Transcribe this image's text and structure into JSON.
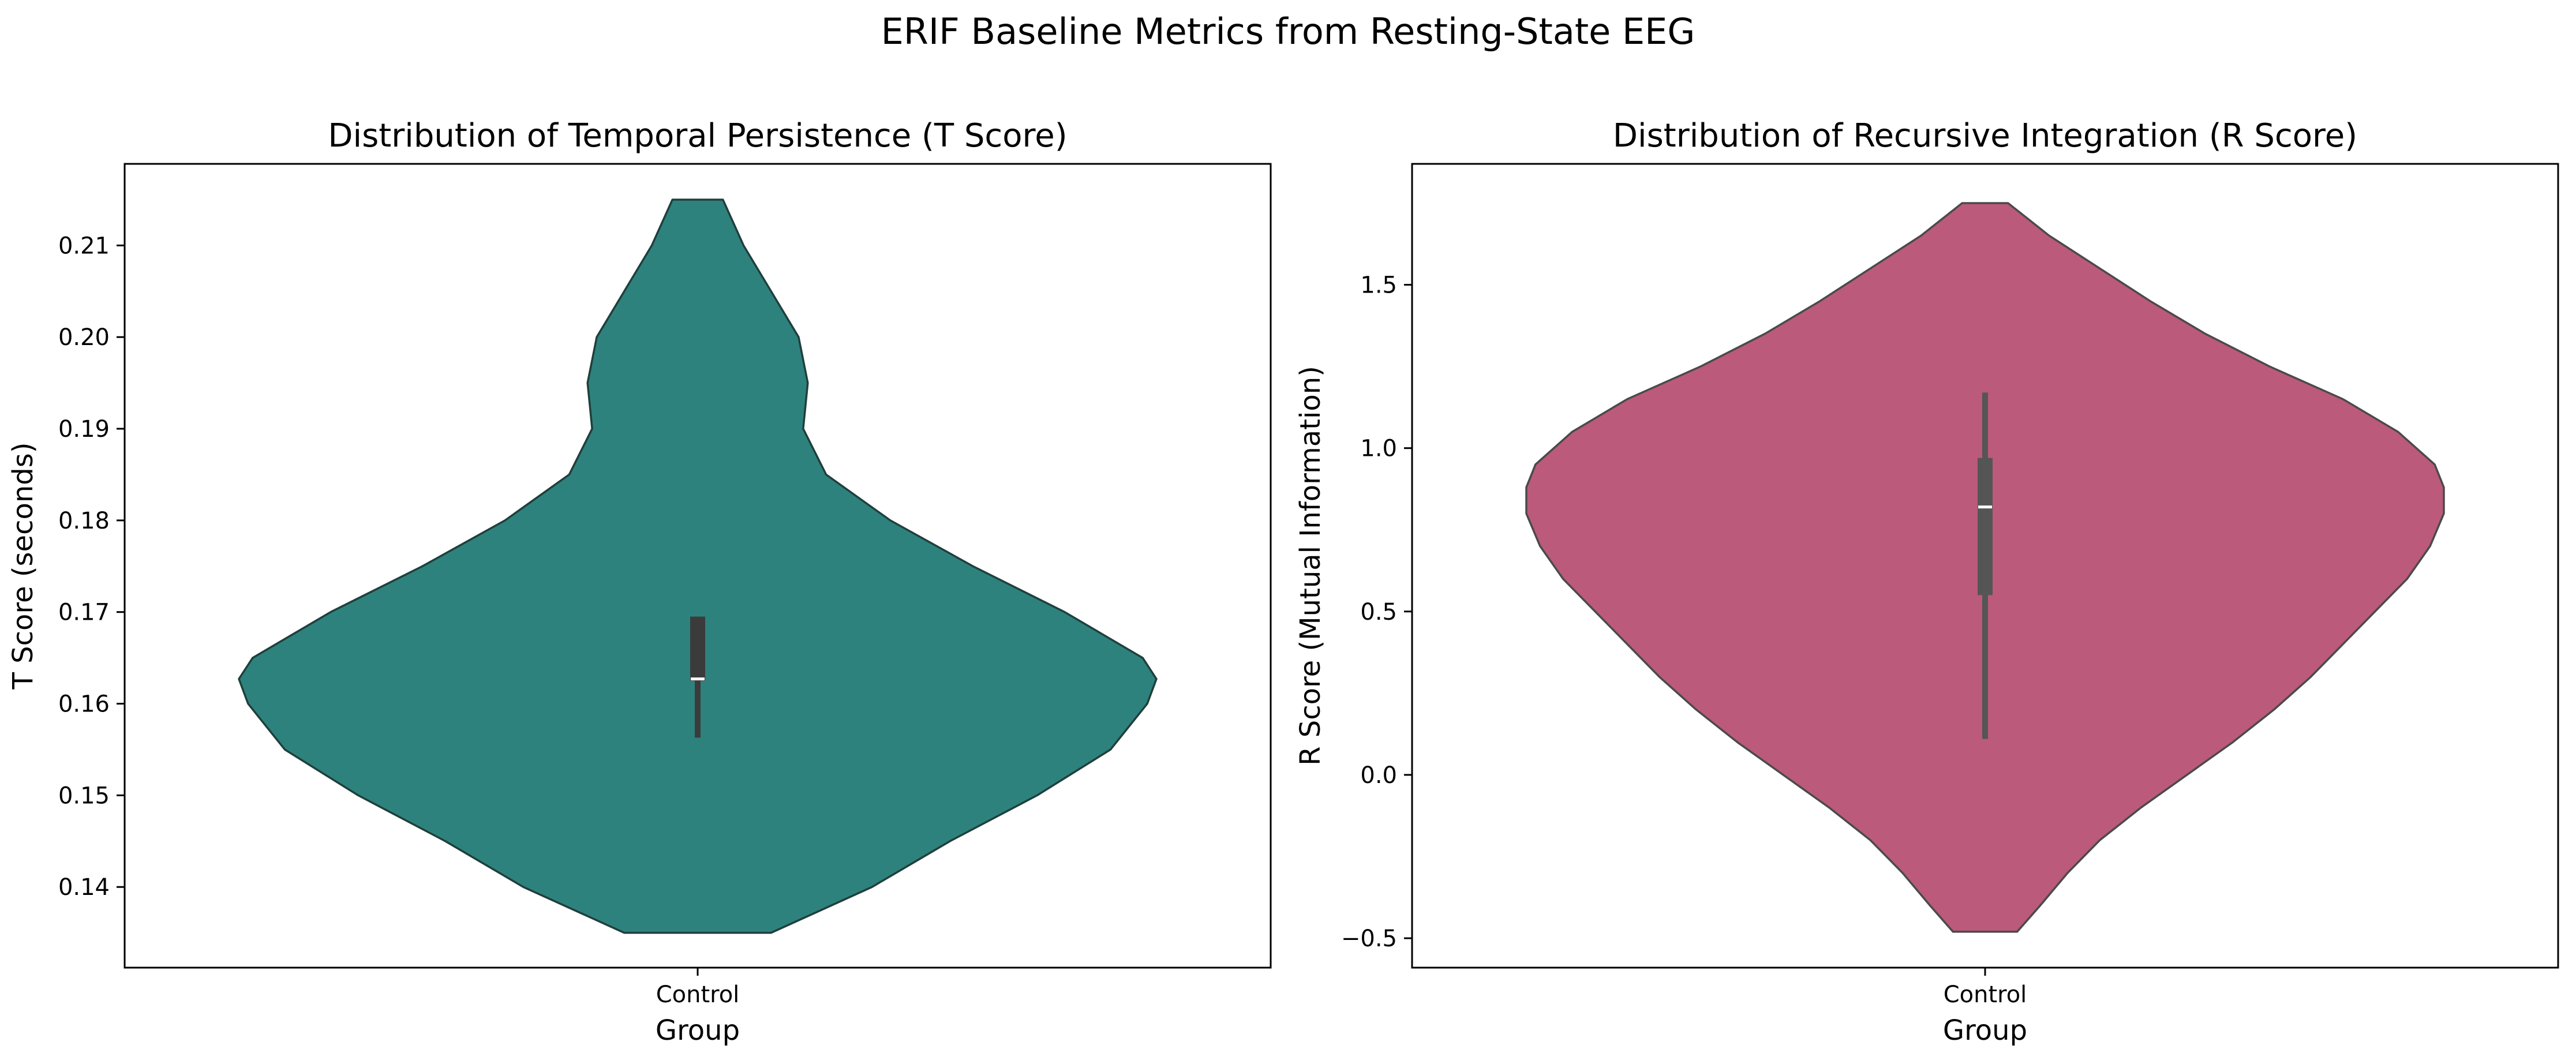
{
  "figure": {
    "suptitle": "ERIF Baseline Metrics from Resting-State EEG"
  },
  "chart_data": [
    {
      "type": "violin",
      "title": "Distribution of Temporal Persistence (T Score)",
      "xlabel": "Group",
      "ylabel": "T Score (seconds)",
      "categories": [
        "Control"
      ],
      "ylim": [
        0.1312,
        0.2189
      ],
      "yticks": [
        0.14,
        0.15,
        0.16,
        0.17,
        0.18,
        0.19,
        0.2,
        0.21
      ],
      "ytick_labels": [
        "0.14",
        "0.15",
        "0.16",
        "0.17",
        "0.18",
        "0.19",
        "0.20",
        "0.21"
      ],
      "grid": false,
      "color": "#2e827d",
      "density_profile": [
        {
          "value": 0.135,
          "rel_width": 0.16
        },
        {
          "value": 0.14,
          "rel_width": 0.38
        },
        {
          "value": 0.145,
          "rel_width": 0.55
        },
        {
          "value": 0.15,
          "rel_width": 0.74
        },
        {
          "value": 0.155,
          "rel_width": 0.9
        },
        {
          "value": 0.16,
          "rel_width": 0.98
        },
        {
          "value": 0.1627,
          "rel_width": 1.0
        },
        {
          "value": 0.165,
          "rel_width": 0.97
        },
        {
          "value": 0.17,
          "rel_width": 0.8
        },
        {
          "value": 0.175,
          "rel_width": 0.6
        },
        {
          "value": 0.18,
          "rel_width": 0.42
        },
        {
          "value": 0.185,
          "rel_width": 0.28
        },
        {
          "value": 0.19,
          "rel_width": 0.23
        },
        {
          "value": 0.195,
          "rel_width": 0.24
        },
        {
          "value": 0.2,
          "rel_width": 0.22
        },
        {
          "value": 0.205,
          "rel_width": 0.16
        },
        {
          "value": 0.21,
          "rel_width": 0.1
        },
        {
          "value": 0.215,
          "rel_width": 0.055
        }
      ],
      "box": {
        "whisker_low": 0.1563,
        "q1": 0.1625,
        "median": 0.1627,
        "q3": 0.1695,
        "whisker_high": 0.1695
      }
    },
    {
      "type": "violin",
      "title": "Distribution of Recursive Integration (R Score)",
      "xlabel": "Group",
      "ylabel": "R Score (Mutual Information)",
      "categories": [
        "Control"
      ],
      "ylim": [
        -0.59,
        1.87
      ],
      "yticks": [
        -0.5,
        0.0,
        0.5,
        1.0,
        1.5
      ],
      "ytick_labels": [
        "−0.5",
        "0.0",
        "0.5",
        "1.0",
        "1.5"
      ],
      "grid": false,
      "color": "#bc5a7b",
      "density_profile": [
        {
          "value": -0.48,
          "rel_width": 0.07
        },
        {
          "value": -0.4,
          "rel_width": 0.12
        },
        {
          "value": -0.3,
          "rel_width": 0.18
        },
        {
          "value": -0.2,
          "rel_width": 0.25
        },
        {
          "value": -0.1,
          "rel_width": 0.34
        },
        {
          "value": 0.0,
          "rel_width": 0.44
        },
        {
          "value": 0.1,
          "rel_width": 0.54
        },
        {
          "value": 0.2,
          "rel_width": 0.63
        },
        {
          "value": 0.3,
          "rel_width": 0.71
        },
        {
          "value": 0.4,
          "rel_width": 0.78
        },
        {
          "value": 0.5,
          "rel_width": 0.85
        },
        {
          "value": 0.6,
          "rel_width": 0.92
        },
        {
          "value": 0.7,
          "rel_width": 0.97
        },
        {
          "value": 0.8,
          "rel_width": 1.0
        },
        {
          "value": 0.88,
          "rel_width": 1.0
        },
        {
          "value": 0.95,
          "rel_width": 0.98
        },
        {
          "value": 1.05,
          "rel_width": 0.9
        },
        {
          "value": 1.15,
          "rel_width": 0.78
        },
        {
          "value": 1.25,
          "rel_width": 0.62
        },
        {
          "value": 1.35,
          "rel_width": 0.48
        },
        {
          "value": 1.45,
          "rel_width": 0.36
        },
        {
          "value": 1.55,
          "rel_width": 0.25
        },
        {
          "value": 1.65,
          "rel_width": 0.14
        },
        {
          "value": 1.75,
          "rel_width": 0.05
        }
      ],
      "box": {
        "whisker_low": 0.11,
        "q1": 0.55,
        "median": 0.82,
        "q3": 0.97,
        "whisker_high": 1.17
      }
    }
  ]
}
